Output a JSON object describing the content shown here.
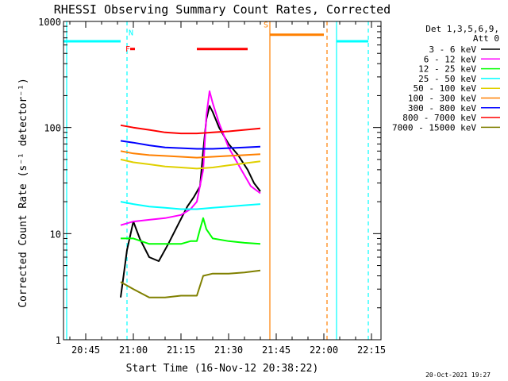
{
  "chart_data": {
    "type": "line",
    "title": "RHESSI Observing Summary Count Rates, Corrected",
    "xlabel": "Start Time (16-Nov-12 20:38:22)",
    "ylabel": "Corrected Count Rate (s⁻¹ detector⁻¹)",
    "y_scale": "log",
    "ylim": [
      1,
      1000
    ],
    "xlim": [
      "20:38",
      "22:18"
    ],
    "x_ticks": [
      "20:45",
      "21:00",
      "21:15",
      "21:30",
      "21:45",
      "22:00",
      "22:15"
    ],
    "y_ticks": [
      "1",
      "10",
      "100",
      "1000"
    ],
    "legend_title": [
      "Det 1,3,5,6,9,",
      "Att 0"
    ],
    "legend_position": "right",
    "timestamp": "20-Oct-2021 19:27",
    "series": [
      {
        "name": "3 - 6 keV",
        "color": "#000000",
        "x": [
          "20:56",
          "20:58",
          "21:00",
          "21:02",
          "21:05",
          "21:08",
          "21:11",
          "21:14",
          "21:17",
          "21:19",
          "21:21",
          "21:22",
          "21:23",
          "21:24",
          "21:25",
          "21:27",
          "21:30",
          "21:33",
          "21:36",
          "21:38",
          "21:40"
        ],
        "y": [
          2.5,
          7,
          13,
          9,
          6,
          5.5,
          8,
          12,
          18,
          22,
          28,
          60,
          120,
          160,
          140,
          100,
          70,
          55,
          40,
          30,
          25
        ]
      },
      {
        "name": "6 - 12 keV",
        "color": "#ff00ff",
        "x": [
          "20:56",
          "21:00",
          "21:05",
          "21:10",
          "21:15",
          "21:18",
          "21:20",
          "21:22",
          "21:23",
          "21:24",
          "21:25",
          "21:27",
          "21:30",
          "21:34",
          "21:37",
          "21:40"
        ],
        "y": [
          12,
          13,
          13.5,
          14,
          15,
          17,
          20,
          40,
          130,
          220,
          170,
          110,
          65,
          40,
          28,
          24
        ]
      },
      {
        "name": "12 - 25 keV",
        "color": "#00ff00",
        "x": [
          "20:56",
          "21:00",
          "21:05",
          "21:10",
          "21:15",
          "21:18",
          "21:20",
          "21:21",
          "21:22",
          "21:23",
          "21:25",
          "21:30",
          "21:35",
          "21:40"
        ],
        "y": [
          9,
          9,
          8,
          8,
          8,
          8.5,
          8.5,
          11,
          14,
          11,
          9,
          8.5,
          8.2,
          8
        ]
      },
      {
        "name": "25 - 50 keV",
        "color": "#00ffff",
        "x": [
          "20:56",
          "21:00",
          "21:05",
          "21:10",
          "21:15",
          "21:20",
          "21:25",
          "21:30",
          "21:35",
          "21:40"
        ],
        "y": [
          20,
          19,
          18,
          17.5,
          17,
          17,
          17.5,
          18,
          18.5,
          19
        ]
      },
      {
        "name": "50 - 100 keV",
        "color": "#e0d000",
        "x": [
          "20:56",
          "21:00",
          "21:05",
          "21:10",
          "21:15",
          "21:20",
          "21:25",
          "21:30",
          "21:35",
          "21:40"
        ],
        "y": [
          50,
          47,
          45,
          43,
          42,
          41,
          42,
          44,
          46,
          48
        ]
      },
      {
        "name": "100 - 300 keV",
        "color": "#ff8000",
        "x": [
          "20:56",
          "21:00",
          "21:05",
          "21:10",
          "21:15",
          "21:20",
          "21:25",
          "21:30",
          "21:35",
          "21:40"
        ],
        "y": [
          60,
          57,
          55,
          54,
          53,
          52,
          53,
          54,
          55,
          56
        ]
      },
      {
        "name": "300 - 800 keV",
        "color": "#0000ff",
        "x": [
          "20:56",
          "21:00",
          "21:05",
          "21:10",
          "21:15",
          "21:20",
          "21:25",
          "21:30",
          "21:35",
          "21:40"
        ],
        "y": [
          75,
          72,
          68,
          65,
          64,
          63,
          63,
          64,
          65,
          66
        ]
      },
      {
        "name": "800 - 7000 keV",
        "color": "#ff0000",
        "x": [
          "20:56",
          "21:00",
          "21:05",
          "21:10",
          "21:15",
          "21:20",
          "21:25",
          "21:30",
          "21:35",
          "21:40"
        ],
        "y": [
          105,
          100,
          95,
          90,
          88,
          88,
          90,
          92,
          95,
          98
        ]
      },
      {
        "name": "7000 - 15000 keV",
        "color": "#808000",
        "x": [
          "20:56",
          "21:00",
          "21:05",
          "21:10",
          "21:15",
          "21:20",
          "21:22",
          "21:25",
          "21:30",
          "21:35",
          "21:40"
        ],
        "y": [
          3.5,
          3,
          2.5,
          2.5,
          2.6,
          2.6,
          4,
          4.2,
          4.2,
          4.3,
          4.5
        ]
      }
    ],
    "annotations": [
      {
        "label": "N",
        "color": "#00ffff"
      },
      {
        "label": "F",
        "color": "#ff0000"
      },
      {
        "label": "S",
        "color": "#ff8000"
      }
    ],
    "flag_bars": [
      {
        "label": "night",
        "color": "#00ffff",
        "x": [
          "20:38",
          "20:56"
        ],
        "y": 650
      },
      {
        "label": "night",
        "color": "#00ffff",
        "x": [
          "22:04",
          "22:14"
        ],
        "y": 650
      },
      {
        "label": "flare",
        "color": "#ff0000",
        "x": [
          "20:59",
          "21:00:30"
        ],
        "y": 550
      },
      {
        "label": "flare",
        "color": "#ff0000",
        "x": [
          "21:20",
          "21:36"
        ],
        "y": 550
      },
      {
        "label": "saa",
        "color": "#ff8000",
        "x": [
          "21:43",
          "22:00"
        ],
        "y": 750
      }
    ],
    "vlines": [
      {
        "x": "20:39",
        "color": "#00ffff",
        "style": "solid"
      },
      {
        "x": "20:58",
        "color": "#00ffff",
        "style": "dashed"
      },
      {
        "x": "21:43",
        "color": "#ff8000",
        "style": "solid"
      },
      {
        "x": "22:04",
        "color": "#00ffff",
        "style": "solid"
      },
      {
        "x": "22:01",
        "color": "#ff8000",
        "style": "dashed"
      },
      {
        "x": "22:14",
        "color": "#00ffff",
        "style": "dashed"
      }
    ]
  }
}
